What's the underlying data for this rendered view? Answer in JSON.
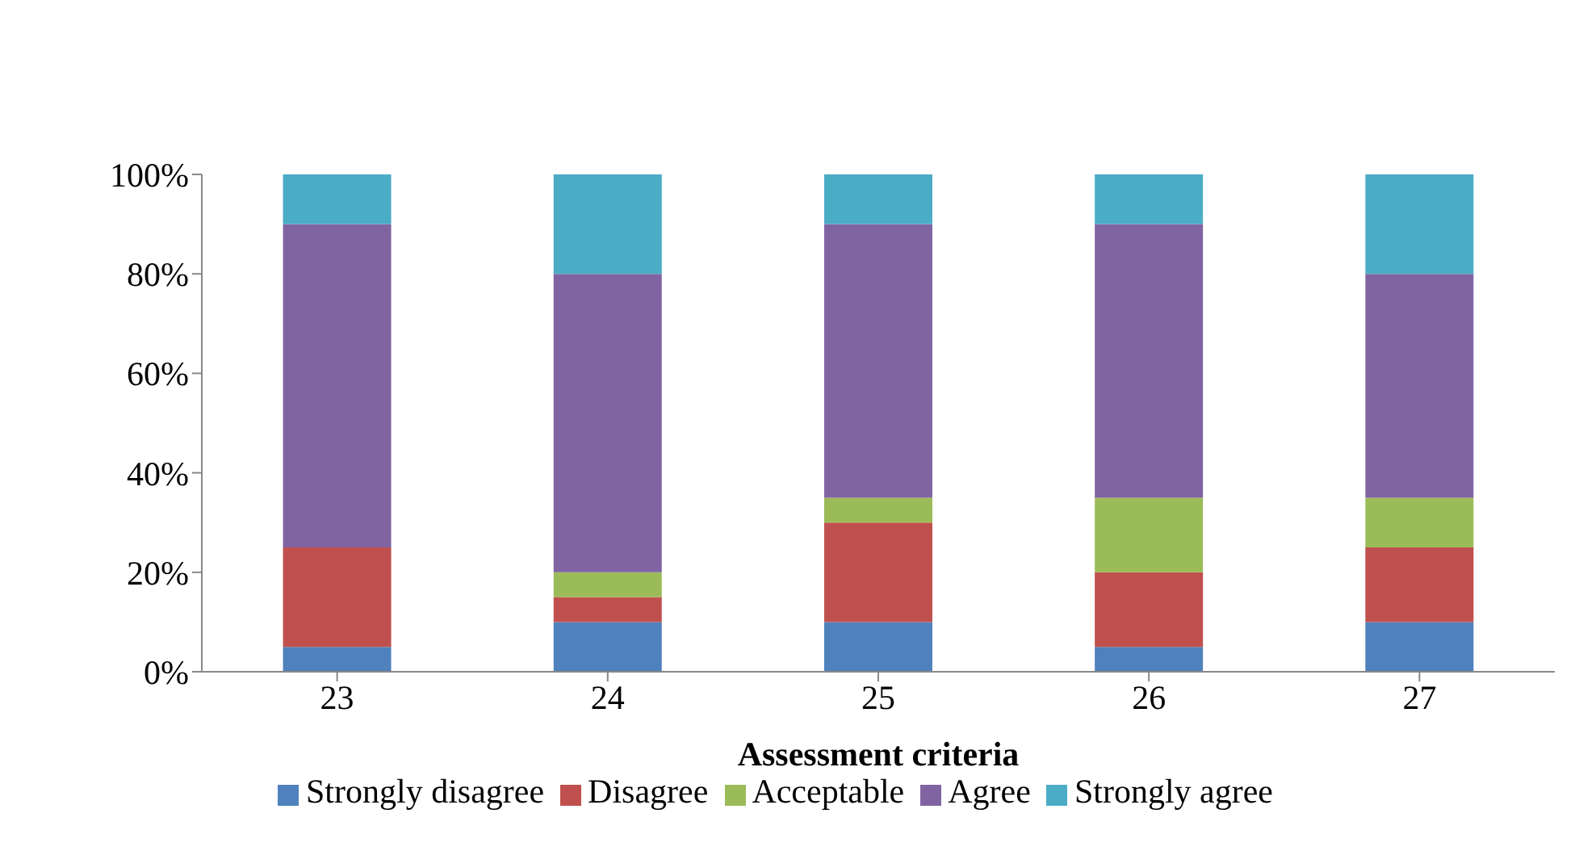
{
  "chart_data": {
    "type": "bar",
    "stacked": true,
    "xlabel": "Assessment criteria",
    "categories": [
      "23",
      "24",
      "25",
      "26",
      "27"
    ],
    "series": [
      {
        "name": "Strongly disagree",
        "color": "#4f81bd",
        "values": [
          5,
          10,
          10,
          5,
          10
        ]
      },
      {
        "name": "Disagree",
        "color": "#c0504d",
        "values": [
          20,
          5,
          20,
          15,
          15
        ]
      },
      {
        "name": "Acceptable",
        "color": "#9bbb59",
        "values": [
          0,
          5,
          5,
          15,
          10
        ]
      },
      {
        "name": "Agree",
        "color": "#8064a2",
        "values": [
          65,
          60,
          55,
          55,
          45
        ]
      },
      {
        "name": "Strongly agree",
        "color": "#4bacc6",
        "values": [
          10,
          20,
          10,
          10,
          20
        ]
      }
    ],
    "ylim": [
      0,
      100
    ],
    "yticks": [
      {
        "value": 0,
        "label": "0%"
      },
      {
        "value": 20,
        "label": "20%"
      },
      {
        "value": 40,
        "label": "40%"
      },
      {
        "value": 60,
        "label": "60%"
      },
      {
        "value": 80,
        "label": "80%"
      },
      {
        "value": 100,
        "label": "100%"
      }
    ],
    "grid": false,
    "legend": "bottom"
  }
}
